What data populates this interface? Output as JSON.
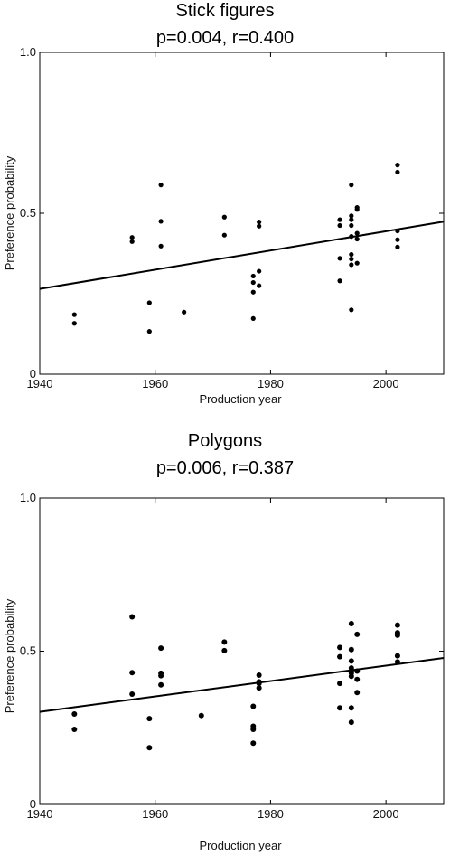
{
  "chart_data": [
    {
      "type": "scatter",
      "title": "Stick figures",
      "subtitle": "p=0.004, r=0.400",
      "xlabel": "Production year",
      "ylabel": "Preference probability",
      "xlim": [
        1940,
        2010
      ],
      "ylim": [
        0,
        1.0
      ],
      "xticks": [
        1940,
        1960,
        1980,
        2000
      ],
      "yticks": [
        0,
        0.5,
        1.0
      ],
      "ytick_labels": [
        "0",
        "0.5",
        "1.0"
      ],
      "grid": false,
      "points": [
        [
          1946,
          0.185
        ],
        [
          1946,
          0.158
        ],
        [
          1956,
          0.425
        ],
        [
          1956,
          0.412
        ],
        [
          1959,
          0.222
        ],
        [
          1959,
          0.133
        ],
        [
          1961,
          0.588
        ],
        [
          1961,
          0.475
        ],
        [
          1961,
          0.398
        ],
        [
          1965,
          0.193
        ],
        [
          1972,
          0.488
        ],
        [
          1972,
          0.432
        ],
        [
          1977,
          0.305
        ],
        [
          1977,
          0.285
        ],
        [
          1977,
          0.255
        ],
        [
          1977,
          0.173
        ],
        [
          1978,
          0.473
        ],
        [
          1978,
          0.46
        ],
        [
          1978,
          0.32
        ],
        [
          1978,
          0.275
        ],
        [
          1992,
          0.48
        ],
        [
          1992,
          0.462
        ],
        [
          1992,
          0.36
        ],
        [
          1992,
          0.29
        ],
        [
          1994,
          0.588
        ],
        [
          1994,
          0.492
        ],
        [
          1994,
          0.48
        ],
        [
          1994,
          0.462
        ],
        [
          1994,
          0.428
        ],
        [
          1994,
          0.372
        ],
        [
          1994,
          0.358
        ],
        [
          1994,
          0.34
        ],
        [
          1994,
          0.2
        ],
        [
          1995,
          0.518
        ],
        [
          1995,
          0.512
        ],
        [
          1995,
          0.438
        ],
        [
          1995,
          0.42
        ],
        [
          1995,
          0.345
        ],
        [
          2002,
          0.65
        ],
        [
          2002,
          0.628
        ],
        [
          2002,
          0.445
        ],
        [
          2002,
          0.418
        ],
        [
          2002,
          0.395
        ]
      ],
      "fit_line": [
        [
          1940,
          0.265
        ],
        [
          2010,
          0.474
        ]
      ]
    },
    {
      "type": "scatter",
      "title": "Polygons",
      "subtitle": "p=0.006, r=0.387",
      "xlabel": "Production year",
      "ylabel": "Preference probability",
      "xlim": [
        1940,
        2010
      ],
      "ylim": [
        0,
        1.0
      ],
      "xticks": [
        1940,
        1960,
        1980,
        2000
      ],
      "yticks": [
        0,
        0.5,
        1.0
      ],
      "ytick_labels": [
        "0",
        "0.5",
        "1.0"
      ],
      "grid": false,
      "points": [
        [
          1946,
          0.295
        ],
        [
          1946,
          0.245
        ],
        [
          1956,
          0.612
        ],
        [
          1956,
          0.43
        ],
        [
          1956,
          0.36
        ],
        [
          1959,
          0.28
        ],
        [
          1959,
          0.185
        ],
        [
          1961,
          0.51
        ],
        [
          1961,
          0.428
        ],
        [
          1961,
          0.42
        ],
        [
          1961,
          0.39
        ],
        [
          1968,
          0.29
        ],
        [
          1972,
          0.53
        ],
        [
          1972,
          0.502
        ],
        [
          1977,
          0.32
        ],
        [
          1977,
          0.255
        ],
        [
          1977,
          0.245
        ],
        [
          1977,
          0.2
        ],
        [
          1978,
          0.422
        ],
        [
          1978,
          0.4
        ],
        [
          1978,
          0.395
        ],
        [
          1978,
          0.38
        ],
        [
          1992,
          0.512
        ],
        [
          1992,
          0.482
        ],
        [
          1992,
          0.395
        ],
        [
          1992,
          0.315
        ],
        [
          1994,
          0.59
        ],
        [
          1994,
          0.505
        ],
        [
          1994,
          0.468
        ],
        [
          1994,
          0.445
        ],
        [
          1994,
          0.435
        ],
        [
          1994,
          0.428
        ],
        [
          1994,
          0.418
        ],
        [
          1994,
          0.315
        ],
        [
          1994,
          0.268
        ],
        [
          1995,
          0.555
        ],
        [
          1995,
          0.435
        ],
        [
          1995,
          0.408
        ],
        [
          1995,
          0.365
        ],
        [
          2002,
          0.585
        ],
        [
          2002,
          0.56
        ],
        [
          2002,
          0.552
        ],
        [
          2002,
          0.485
        ],
        [
          2002,
          0.465
        ]
      ],
      "fit_line": [
        [
          1940,
          0.302
        ],
        [
          2010,
          0.478
        ]
      ]
    }
  ]
}
